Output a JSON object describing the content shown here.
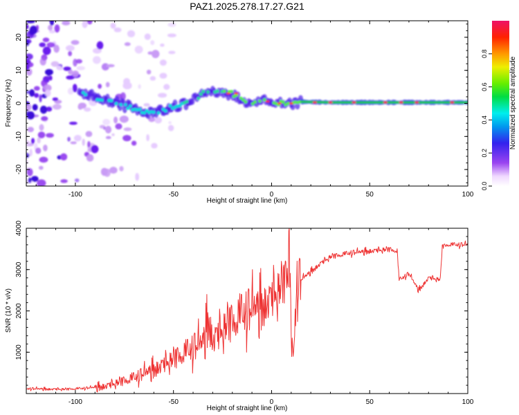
{
  "chart_data": [
    {
      "type": "heatmap",
      "title": "PAZ1.2025.278.17.27.G21",
      "xlabel": "Height of straight line (km)",
      "ylabel": "Frequency (Hz)",
      "xlim": [
        -125,
        100
      ],
      "ylim": [
        -25,
        25
      ],
      "xticks": [
        -100,
        -50,
        0,
        50,
        100
      ],
      "xtick_labels": [
        "-100",
        "-50",
        "0",
        "50",
        "100"
      ],
      "yticks": [
        -20,
        -10,
        0,
        10,
        20
      ],
      "ytick_labels": [
        "-20",
        "-10",
        "0",
        "10",
        "20"
      ],
      "ridge": {
        "height_km": [
          -98,
          -90,
          -80,
          -70,
          -62,
          -56,
          -50,
          -45,
          -40,
          -35,
          -30,
          -25,
          -20,
          -15,
          -10,
          -5,
          0,
          5,
          10,
          15,
          30,
          50,
          70,
          100
        ],
        "frequency_hz": [
          3,
          2,
          0,
          -1.5,
          -3,
          -2.5,
          -1,
          -0.5,
          1,
          3,
          3.5,
          3,
          3,
          1,
          -0.5,
          1,
          0.3,
          0,
          -0.5,
          0.5,
          0.3,
          0.3,
          0.3,
          0.3
        ]
      },
      "colorbar": {
        "label": "Normalized spectral amplitude",
        "range": [
          0,
          1
        ],
        "ticks": [
          0.0,
          0.2,
          0.4,
          0.6,
          0.8
        ],
        "tick_labels": [
          "0.0",
          "0.2",
          "0.4",
          "0.6",
          "0.8"
        ]
      }
    },
    {
      "type": "line",
      "xlabel": "Height of straight line (km)",
      "ylabel": "SNR (10 * v/v)",
      "xlim": [
        -125,
        100
      ],
      "ylim": [
        0,
        4000
      ],
      "xticks": [
        -100,
        -50,
        0,
        50,
        100
      ],
      "xtick_labels": [
        "-100",
        "-50",
        "0",
        "50",
        "100"
      ],
      "yticks": [
        1000,
        2000,
        3000,
        4000
      ],
      "ytick_labels": [
        "1000",
        "2000",
        "3000",
        "4000"
      ],
      "series": [
        {
          "name": "SNR",
          "color": "#ee3333",
          "x": [
            -125,
            -115,
            -105,
            -95,
            -90,
            -85,
            -80,
            -75,
            -70,
            -65,
            -60,
            -55,
            -50,
            -45,
            -40,
            -35,
            -32,
            -30,
            -25,
            -20,
            -15,
            -10,
            -5,
            0,
            5,
            8,
            9,
            10,
            11,
            13,
            15,
            20,
            25,
            30,
            40,
            50,
            60,
            64,
            65,
            70,
            75,
            80,
            86,
            87,
            90,
            100
          ],
          "y": [
            120,
            110,
            100,
            130,
            150,
            180,
            230,
            300,
            380,
            480,
            600,
            700,
            800,
            950,
            1100,
            1250,
            1800,
            1300,
            1500,
            1700,
            1900,
            2050,
            2150,
            2300,
            2500,
            2800,
            3400,
            1500,
            900,
            2700,
            2750,
            2950,
            3150,
            3300,
            3400,
            3450,
            3480,
            3450,
            2750,
            2900,
            2500,
            2800,
            2750,
            3550,
            3600,
            3600
          ]
        }
      ]
    }
  ]
}
